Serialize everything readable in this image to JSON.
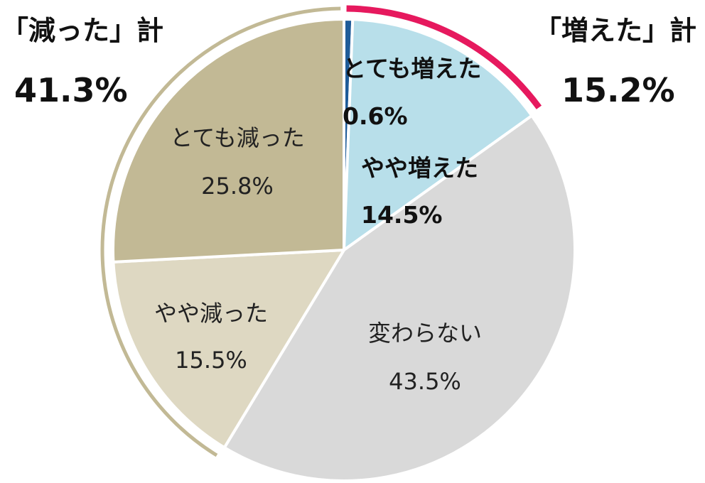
{
  "chart_data": {
    "type": "pie",
    "slices": [
      {
        "label": "とても増えた",
        "value": 0.6,
        "value_text": "0.6%",
        "color": "#1F5C99"
      },
      {
        "label": "やや増えた",
        "value": 14.5,
        "value_text": "14.5%",
        "color": "#B8DFEA"
      },
      {
        "label": "変わらない",
        "value": 43.5,
        "value_text": "43.5%",
        "color": "#D9D9D9"
      },
      {
        "label": "やや減った",
        "value": 15.5,
        "value_text": "15.5%",
        "color": "#DED8C2"
      },
      {
        "label": "とても減った",
        "value": 25.8,
        "value_text": "25.8%",
        "color": "#C2B995"
      }
    ],
    "group_summaries": {
      "decreased": {
        "title": "「減った」計",
        "value": 41.3,
        "value_text": "41.3%",
        "arc_color": "#C2B995"
      },
      "increased": {
        "title": "「増えた」計",
        "value": 15.2,
        "value_text": "15.2%",
        "arc_color": "#E6195E"
      }
    }
  }
}
